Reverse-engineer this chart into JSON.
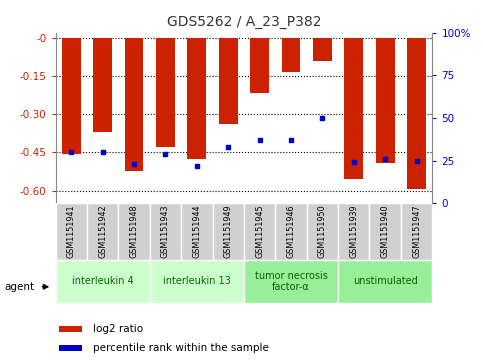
{
  "title": "GDS5262 / A_23_P382",
  "samples": [
    "GSM1151941",
    "GSM1151942",
    "GSM1151948",
    "GSM1151943",
    "GSM1151944",
    "GSM1151949",
    "GSM1151945",
    "GSM1151946",
    "GSM1151950",
    "GSM1151939",
    "GSM1151940",
    "GSM1151947"
  ],
  "log2_ratio": [
    -0.455,
    -0.37,
    -0.525,
    -0.43,
    -0.475,
    -0.34,
    -0.215,
    -0.135,
    -0.09,
    -0.555,
    -0.49,
    -0.595
  ],
  "percentile_rank": [
    30,
    30,
    23,
    29,
    22,
    33,
    37,
    37,
    50,
    24,
    26,
    25
  ],
  "groups": [
    {
      "label": "interleukin 4",
      "start": 0,
      "end": 3,
      "color": "#ccffcc"
    },
    {
      "label": "interleukin 13",
      "start": 3,
      "end": 6,
      "color": "#ccffcc"
    },
    {
      "label": "tumor necrosis\nfactor-α",
      "start": 6,
      "end": 9,
      "color": "#99ee99"
    },
    {
      "label": "unstimulated",
      "start": 9,
      "end": 12,
      "color": "#99ee99"
    }
  ],
  "ylim_left": [
    -0.65,
    0.02
  ],
  "ylim_right": [
    0,
    100
  ],
  "yticks_left": [
    0.0,
    -0.15,
    -0.3,
    -0.45,
    -0.6
  ],
  "yticks_right": [
    0,
    25,
    50,
    75,
    100
  ],
  "bar_color": "#cc2200",
  "dot_color": "#0000cc",
  "background_color": "#ffffff",
  "agent_label": "agent",
  "legend_bar_label": "log2 ratio",
  "legend_dot_label": "percentile rank within the sample",
  "tick_label_color_left": "#cc2200",
  "tick_label_color_right": "#0000cc",
  "cell_bg": "#d0d0d0",
  "cell_edge": "#ffffff"
}
